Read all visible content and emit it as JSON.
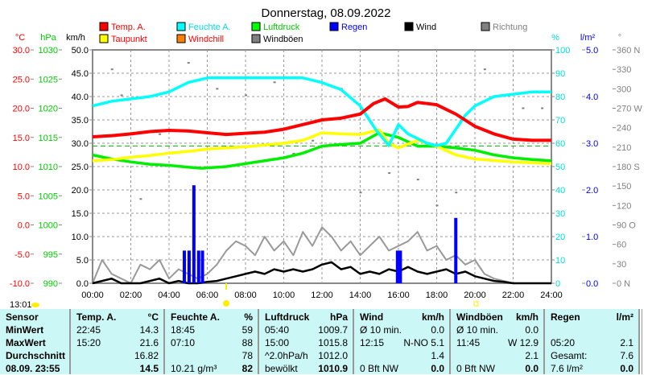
{
  "chart_data": {
    "type": "line",
    "title": "Donnerstag, 08.09.2022",
    "legend": [
      {
        "name": "Temp. A.",
        "color": "#ff0000"
      },
      {
        "name": "Feuchte A.",
        "color": "#00ffff"
      },
      {
        "name": "Luftdruck",
        "color": "#00ff00"
      },
      {
        "name": "Regen",
        "color": "#0000ff"
      },
      {
        "name": "Wind",
        "color": "#000000"
      },
      {
        "name": "Richtung",
        "color": "#808080"
      },
      {
        "name": "Taupunkt",
        "color": "#ffff00",
        "text_color": "#ff0000"
      },
      {
        "name": "Windchill",
        "color": "#ff8000",
        "text_color": "#ff0000"
      },
      {
        "name": "Windböen",
        "color": "#808080",
        "text_color": "#000000"
      }
    ],
    "axes": {
      "temp": {
        "unit": "°C",
        "range": [
          -10,
          30
        ],
        "ticks": [
          "30.0",
          "25.0",
          "20.0",
          "15.0",
          "10.0",
          "5.0",
          "0.0",
          "-5.0",
          "-10.0"
        ],
        "color": "#ff0000"
      },
      "pressure": {
        "unit": "hPa",
        "range": [
          990,
          1030
        ],
        "ticks": [
          "1030",
          "1025",
          "1020",
          "1015",
          "1010",
          "1005",
          "1000",
          "995",
          "990"
        ],
        "color": "#00cc00"
      },
      "wind": {
        "unit": "km/h",
        "range": [
          0,
          50
        ],
        "ticks": [
          "50.0",
          "45.0",
          "40.0",
          "35.0",
          "30.0",
          "25.0",
          "20.0",
          "15.0",
          "10.0",
          "5.0",
          "0.0"
        ],
        "color": "#000000"
      },
      "humidity": {
        "unit": "%",
        "range": [
          0,
          100
        ],
        "ticks": [
          "100",
          "90",
          "80",
          "70",
          "60",
          "50",
          "40",
          "30",
          "20",
          "10",
          "0"
        ],
        "color": "#00ffff"
      },
      "rain": {
        "unit": "l/m²",
        "range": [
          0,
          5
        ],
        "ticks": [
          "5.0",
          "4.0",
          "3.0",
          "2.0",
          "1.0",
          "0.0"
        ],
        "color": "#0000ff"
      },
      "direction": {
        "unit": "°",
        "range": [
          0,
          360
        ],
        "ticks": [
          "360 N",
          "330",
          "300",
          "270 W",
          "240",
          "210",
          "180 S",
          "150",
          "120",
          "90 O",
          "60",
          "30",
          "0 N"
        ],
        "color": "#808080"
      }
    },
    "x_ticks": [
      "00:00",
      "02:00",
      "04:00",
      "06:00",
      "08:00",
      "10:00",
      "12:00",
      "14:00",
      "16:00",
      "18:00",
      "20:00",
      "22:00",
      "24:00"
    ],
    "x_range": [
      0,
      24
    ],
    "temp": [
      [
        0,
        15.1
      ],
      [
        1,
        15.3
      ],
      [
        2,
        15.6
      ],
      [
        3,
        16.0
      ],
      [
        4,
        16.2
      ],
      [
        5,
        16.1
      ],
      [
        6,
        15.8
      ],
      [
        7,
        15.5
      ],
      [
        8,
        15.7
      ],
      [
        9,
        15.9
      ],
      [
        10,
        16.4
      ],
      [
        11,
        17.2
      ],
      [
        12,
        18.0
      ],
      [
        13,
        18.3
      ],
      [
        14,
        19.0
      ],
      [
        14.7,
        20.8
      ],
      [
        15.3,
        21.6
      ],
      [
        16,
        20.2
      ],
      [
        16.5,
        20.3
      ],
      [
        17,
        21.0
      ],
      [
        17.5,
        20.8
      ],
      [
        18,
        20.6
      ],
      [
        19,
        19.0
      ],
      [
        20,
        16.9
      ],
      [
        21,
        15.6
      ],
      [
        22,
        14.7
      ],
      [
        23,
        14.5
      ],
      [
        24,
        14.5
      ]
    ],
    "humidity": [
      [
        0,
        76
      ],
      [
        1,
        78
      ],
      [
        2,
        79
      ],
      [
        3,
        80
      ],
      [
        4,
        82
      ],
      [
        5,
        86
      ],
      [
        6,
        88
      ],
      [
        7,
        88
      ],
      [
        8,
        88
      ],
      [
        9,
        88
      ],
      [
        10,
        88
      ],
      [
        11,
        88
      ],
      [
        12,
        86
      ],
      [
        13,
        83
      ],
      [
        14,
        76
      ],
      [
        14.8,
        66
      ],
      [
        15.5,
        59
      ],
      [
        16,
        68
      ],
      [
        16.5,
        64
      ],
      [
        17,
        62
      ],
      [
        17.5,
        60
      ],
      [
        18,
        59
      ],
      [
        18.5,
        60
      ],
      [
        19,
        66
      ],
      [
        19.5,
        72
      ],
      [
        20,
        76
      ],
      [
        21,
        80
      ],
      [
        22,
        81
      ],
      [
        23,
        82
      ],
      [
        24,
        82
      ]
    ],
    "dewpoint": [
      [
        0,
        11.0
      ],
      [
        1,
        11.2
      ],
      [
        2,
        11.6
      ],
      [
        3,
        11.9
      ],
      [
        4,
        12.3
      ],
      [
        5,
        12.6
      ],
      [
        6,
        13.0
      ],
      [
        8,
        13.4
      ],
      [
        10,
        14.0
      ],
      [
        11,
        14.5
      ],
      [
        12,
        15.8
      ],
      [
        13,
        15.6
      ],
      [
        14,
        15.5
      ],
      [
        15,
        16.3
      ],
      [
        15.5,
        14.0
      ],
      [
        16,
        13.2
      ],
      [
        17,
        14.5
      ],
      [
        18,
        13.5
      ],
      [
        19,
        12.0
      ],
      [
        20,
        11.3
      ],
      [
        22,
        10.8
      ],
      [
        24,
        10.5
      ]
    ],
    "pressure": [
      [
        0,
        1012.0
      ],
      [
        1,
        1011.3
      ],
      [
        2,
        1010.8
      ],
      [
        3,
        1010.4
      ],
      [
        4,
        1010.2
      ],
      [
        5,
        1009.9
      ],
      [
        5.7,
        1009.7
      ],
      [
        7,
        1010.0
      ],
      [
        8,
        1010.5
      ],
      [
        9,
        1011.0
      ],
      [
        10,
        1011.5
      ],
      [
        11,
        1012.3
      ],
      [
        12,
        1013.5
      ],
      [
        13,
        1013.8
      ],
      [
        14,
        1014.0
      ],
      [
        15,
        1015.8
      ],
      [
        16,
        1015.0
      ],
      [
        17,
        1013.5
      ],
      [
        18,
        1013.5
      ],
      [
        19,
        1013.2
      ],
      [
        20,
        1012.8
      ],
      [
        21,
        1012.0
      ],
      [
        22,
        1011.5
      ],
      [
        23,
        1011.2
      ],
      [
        24,
        1011.0
      ]
    ],
    "pressure_avg": 1012.0,
    "rain": [
      [
        4.8,
        0.7
      ],
      [
        5.05,
        0.7
      ],
      [
        5.3,
        2.1
      ],
      [
        5.55,
        0.7
      ],
      [
        5.75,
        0.7
      ],
      [
        15.95,
        0.7
      ],
      [
        16.1,
        0.7
      ],
      [
        19.0,
        1.4
      ]
    ],
    "wind": [
      0,
      0.5,
      1,
      0,
      0,
      0,
      0.5,
      1,
      0,
      0.5,
      0,
      0,
      0.3,
      0.5,
      1,
      1.5,
      2,
      2.5,
      2,
      3,
      2.5,
      3,
      2.5,
      3,
      4,
      4.5,
      3,
      3.5,
      2,
      2.5,
      2,
      3,
      2.5,
      3.5,
      2.5,
      2,
      2.5,
      3,
      2,
      2.5,
      1.5,
      1,
      0.5,
      0.3,
      0,
      0,
      0,
      0,
      0
    ],
    "gusts": [
      0,
      5,
      2,
      1,
      0,
      4,
      3,
      5,
      1,
      3,
      2,
      1,
      2,
      4,
      7,
      9,
      8,
      6,
      10,
      7,
      9,
      6,
      11,
      8,
      12,
      10,
      7,
      9,
      6,
      8,
      10,
      7,
      8,
      9,
      11,
      7,
      8,
      5,
      6,
      4,
      5,
      2,
      1,
      0.5,
      0,
      0,
      0,
      0,
      0
    ],
    "direction": [
      [
        1,
        330
      ],
      [
        1.5,
        290
      ],
      [
        2.5,
        130
      ],
      [
        3.5,
        230
      ],
      [
        5,
        340
      ],
      [
        6.5,
        300
      ],
      [
        8,
        290
      ],
      [
        9.5,
        310
      ],
      [
        10.5,
        200
      ],
      [
        11.5,
        220
      ],
      [
        13,
        300
      ],
      [
        14,
        140
      ],
      [
        15.5,
        170
      ],
      [
        17,
        160
      ],
      [
        18,
        120
      ],
      [
        19,
        140
      ],
      [
        20.5,
        330
      ],
      [
        22.5,
        270
      ],
      [
        23.5,
        270
      ]
    ],
    "x_markers": {
      "time": "13:01",
      "sunrise": "07:00",
      "sunset": "20:00"
    }
  },
  "table": {
    "headers": [
      [
        "Sensor",
        ""
      ],
      [
        "Temp. A.",
        "°C"
      ],
      [
        "Feuchte A.",
        "%"
      ],
      [
        "Luftdruck",
        "hPa"
      ],
      [
        "Wind",
        "km/h"
      ],
      [
        "Windböen",
        "km/h"
      ],
      [
        "Regen",
        "l/m²"
      ]
    ],
    "rows": [
      [
        "MinWert",
        [
          "22:45",
          "14.3"
        ],
        [
          "18:45",
          "59"
        ],
        [
          "05:40",
          "1009.7"
        ],
        [
          "Ø 10 min.",
          "0.0"
        ],
        [
          "Ø 10 min.",
          "0.0"
        ],
        [
          "",
          ""
        ]
      ],
      [
        "MaxWert",
        [
          "15:20",
          "21.6"
        ],
        [
          "07:10",
          "88"
        ],
        [
          "15:00",
          "1015.8"
        ],
        [
          "12:15",
          "N-NO 5.1"
        ],
        [
          "11:45",
          "W 12.9"
        ],
        [
          "05:20",
          "2.1"
        ]
      ],
      [
        "Durchschnitt",
        [
          "",
          "16.82"
        ],
        [
          "",
          "78"
        ],
        [
          "^2.0hPa/h",
          "1012.0"
        ],
        [
          "",
          "1.4"
        ],
        [
          "",
          "2.1"
        ],
        [
          "Gesamt:",
          "7.6"
        ]
      ],
      [
        "08.09. 23:55",
        [
          "",
          "14.5"
        ],
        [
          "10.21 g/m³",
          "82"
        ],
        [
          "bewölkt",
          "1010.9"
        ],
        [
          "0 Bft NW",
          "0.0"
        ],
        [
          "0 Bft NW",
          "0.0"
        ],
        [
          "7.6 l/m²",
          "0.0"
        ]
      ]
    ]
  }
}
